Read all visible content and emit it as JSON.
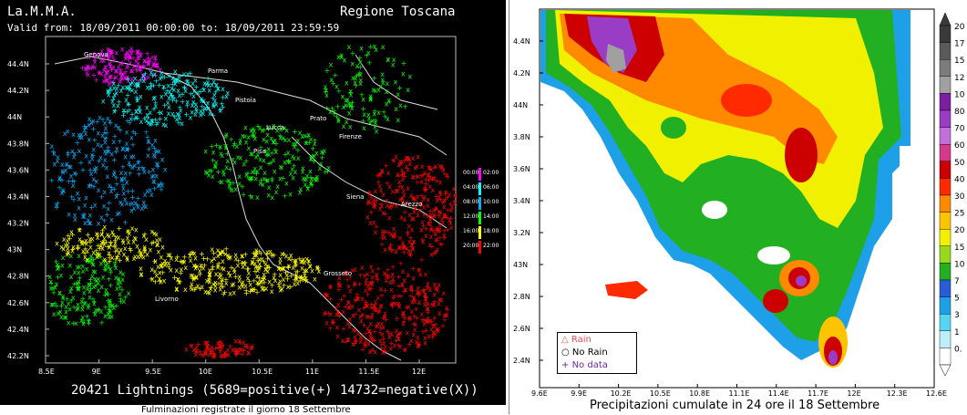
{
  "left": {
    "org": "La.M.M.A.",
    "region": "Regione Toscana",
    "valid_from_label": "Valid from:",
    "valid_from": "18/09/2011 00:00:00",
    "to_label": "to:",
    "valid_to": "18/09/2011 23:59:59",
    "lat_ticks": [
      "44.4N",
      "44.2N",
      "44N",
      "43.8N",
      "43.6N",
      "43.4N",
      "43.2N",
      "43N",
      "42.8N",
      "42.6N",
      "42.4N",
      "42.2N"
    ],
    "lon_ticks": [
      "8.5E",
      "9E",
      "9.5E",
      "10E",
      "10.5E",
      "11E",
      "11.5E",
      "12E"
    ],
    "legend": [
      {
        "range": "00:00",
        "to": "02:00",
        "color": "#ff00ff"
      },
      {
        "range": "04:00",
        "to": "06:00",
        "color": "#00ffff"
      },
      {
        "range": "08:00",
        "to": "10:00",
        "color": "#00b0ff"
      },
      {
        "range": "12:00",
        "to": "14:00",
        "color": "#00ff00"
      },
      {
        "range": "16:00",
        "to": "18:00",
        "color": "#ffff00"
      },
      {
        "range": "20:00",
        "to": "22:00",
        "color": "#ff0000"
      }
    ],
    "cities": [
      "Genova",
      "Parma",
      "Pistoia",
      "Prato",
      "Lucca",
      "Firenze",
      "Pisa",
      "Siena",
      "Arezzo",
      "Grosseto",
      "Livorno"
    ],
    "summary": "20421 Lightnings (5689=positive(+) 14732=negative(X))",
    "caption": "Fulminazioni registrate il giorno 18 Settembre"
  },
  "right": {
    "lat_ticks": [
      "4.4N",
      "4.2N",
      "44N",
      "3.8N",
      "3.6N",
      "3.4N",
      "3.2N",
      "43N",
      "2.8N",
      "2.6N",
      "2.4N"
    ],
    "lon_ticks": [
      "9.6E",
      "9.9E",
      "10.2E",
      "10.5E",
      "10.8E",
      "11.1E",
      "11.4E",
      "11.7E",
      "12E",
      "12.3E",
      "12.6E"
    ],
    "colorbar": [
      {
        "label": "20",
        "color": "#3a3a3a"
      },
      {
        "label": "17",
        "color": "#5a5a5a"
      },
      {
        "label": "15",
        "color": "#7c7c7c"
      },
      {
        "label": "12",
        "color": "#a0a0a0"
      },
      {
        "label": "10",
        "color": "#7a1fa2"
      },
      {
        "label": "80",
        "color": "#9b3cc6"
      },
      {
        "label": "70",
        "color": "#c070d8"
      },
      {
        "label": "60",
        "color": "#d53a8a"
      },
      {
        "label": "50",
        "color": "#cc0000"
      },
      {
        "label": "40",
        "color": "#ff2a00"
      },
      {
        "label": "30",
        "color": "#ff8a00"
      },
      {
        "label": "25",
        "color": "#ffc400"
      },
      {
        "label": "20",
        "color": "#f0f000"
      },
      {
        "label": "15",
        "color": "#9ad81a"
      },
      {
        "label": "10",
        "color": "#22b022"
      },
      {
        "label": "7",
        "color": "#2a5cd8"
      },
      {
        "label": "5",
        "color": "#1ea0e8"
      },
      {
        "label": "3",
        "color": "#55d6f0"
      },
      {
        "label": "1",
        "color": "#bdeefa"
      },
      {
        "label": "0.",
        "color": "#ffffff"
      }
    ],
    "legend": {
      "rain": "Rain",
      "no_rain": "No Rain",
      "no_data": "No data"
    },
    "caption": "Precipitazioni cumulate in 24 ore il 18 Settembre"
  }
}
